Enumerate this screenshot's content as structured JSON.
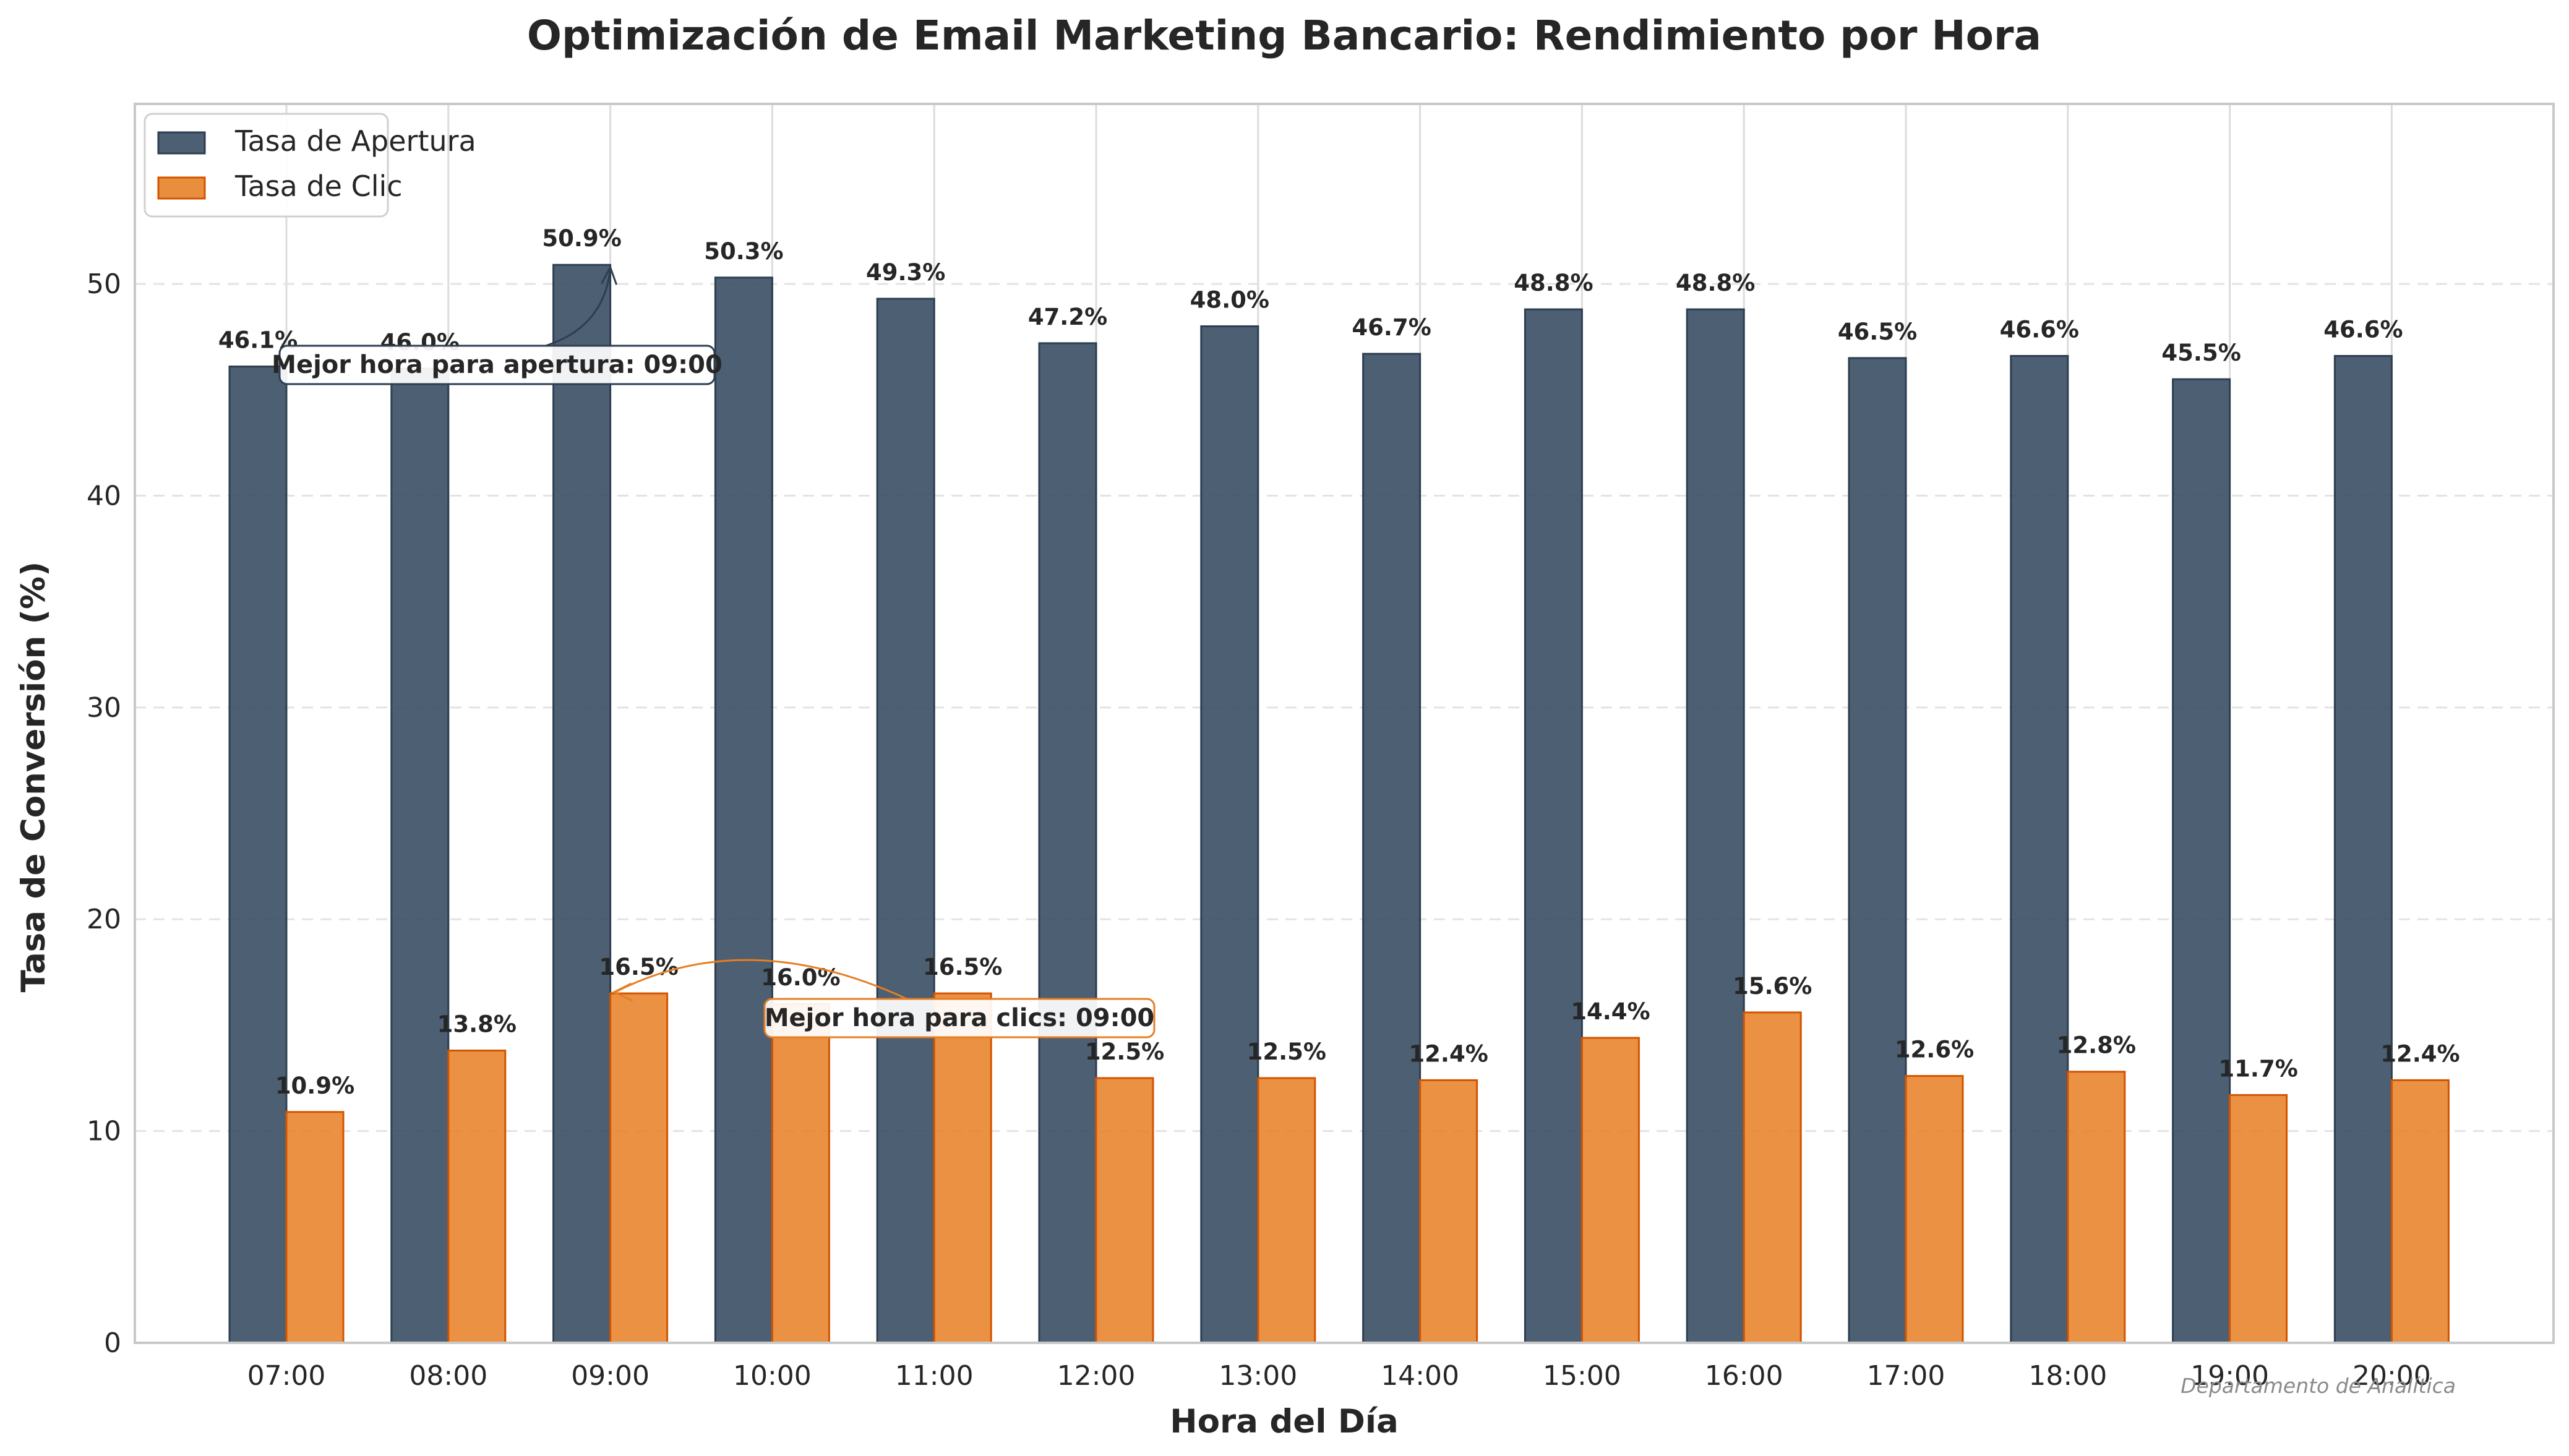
{
  "chart_data": {
    "type": "bar",
    "title": "Optimización de Email Marketing Bancario: Rendimiento por Hora",
    "xlabel": "Hora del Día",
    "ylabel": "Tasa de Conversión (%)",
    "categories": [
      "07:00",
      "08:00",
      "09:00",
      "10:00",
      "11:00",
      "12:00",
      "13:00",
      "14:00",
      "15:00",
      "16:00",
      "17:00",
      "18:00",
      "19:00",
      "20:00"
    ],
    "series": [
      {
        "name": "Tasa de Apertura",
        "color": "#34495e",
        "edge": "#2c3e50",
        "values": [
          46.1,
          46.0,
          50.9,
          50.3,
          49.3,
          47.2,
          48.0,
          46.7,
          48.8,
          48.8,
          46.5,
          46.6,
          45.5,
          46.6
        ]
      },
      {
        "name": "Tasa de Clic",
        "color": "#e67e22",
        "edge": "#d35400",
        "values": [
          10.9,
          13.8,
          16.5,
          16.0,
          16.5,
          12.5,
          12.5,
          12.4,
          14.4,
          15.6,
          12.6,
          12.8,
          11.7,
          12.4
        ]
      }
    ],
    "ylim": [
      0,
      58.5
    ],
    "yticks": [
      0,
      10,
      20,
      30,
      40,
      50
    ],
    "value_suffix": "%",
    "grid": "y dashed",
    "legend_position": "upper-left",
    "annotations": [
      {
        "text": "Mejor hora para apertura: 09:00",
        "series": 0,
        "category": "09:00",
        "value": 50.9
      },
      {
        "text": "Mejor hora para clics: 09:00",
        "series": 1,
        "category": "09:00",
        "value": 16.5
      }
    ],
    "watermark": "Departamento de Analítica"
  }
}
